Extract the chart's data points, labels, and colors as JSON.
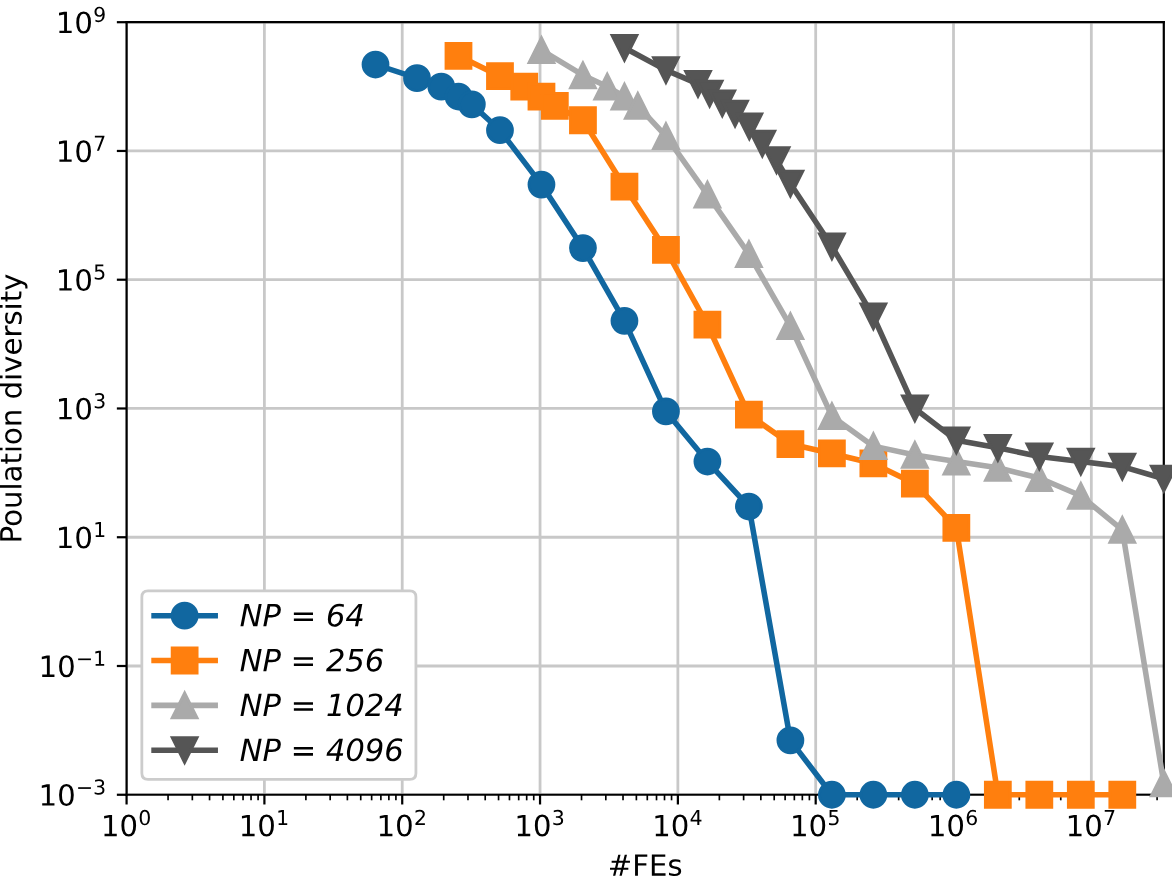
{
  "chart_data": {
    "type": "line",
    "xlabel": "#FEs",
    "ylabel": "Poulation diversity",
    "log": "xy",
    "grid": true,
    "legend": "bottom left",
    "xlim": [
      1,
      33554432
    ],
    "ylim": [
      0.001,
      1000000000
    ],
    "xticks": [
      {
        "value": 1,
        "label": "10$^{0}$"
      },
      {
        "value": 10,
        "label": "10$^{1}$"
      },
      {
        "value": 100,
        "label": "10$^{2}$"
      },
      {
        "value": 1000,
        "label": "10$^{3}$"
      },
      {
        "value": 10000,
        "label": "10$^{4}$"
      },
      {
        "value": 100000,
        "label": "10$^{5}$"
      },
      {
        "value": 1000000,
        "label": "10$^{6}$"
      },
      {
        "value": 10000000,
        "label": "10$^{7}$"
      }
    ],
    "yticks": [
      {
        "value": 0.001,
        "label": "10$^{−3}$"
      },
      {
        "value": 0.1,
        "label": "10$^{−1}$"
      },
      {
        "value": 10,
        "label": "10$^{1}$"
      },
      {
        "value": 1000,
        "label": "10$^{3}$"
      },
      {
        "value": 100000,
        "label": "10$^{5}$"
      },
      {
        "value": 10000000,
        "label": "10$^{7}$"
      },
      {
        "value": 1000000000,
        "label": "10$^{9}$"
      }
    ],
    "series": [
      {
        "name": "NP = 64",
        "color": "#1167a0",
        "marker": "circle",
        "x": [
          64,
          128,
          192,
          256,
          320,
          512,
          1024,
          2048,
          4096,
          8192,
          16384,
          32768,
          65536,
          131072,
          262144,
          524288,
          1048576
        ],
        "values": [
          220000000,
          135000000,
          100000000,
          70000000,
          53000000,
          21000000,
          3000000,
          310000,
          23000,
          900,
          150,
          30,
          0.007,
          0.001,
          0.001,
          0.001,
          0.001
        ]
      },
      {
        "name": "NP = 256",
        "color": "#ff7f0e",
        "marker": "square",
        "x": [
          256,
          512,
          768,
          1024,
          1280,
          2048,
          4096,
          8192,
          16384,
          32768,
          65536,
          131072,
          262144,
          524288,
          1048576,
          2097152,
          4194304,
          8388608,
          16777216
        ],
        "values": [
          300000000,
          145000000,
          100000000,
          70000000,
          50000000,
          30000000,
          2800000,
          290000,
          20000,
          800,
          280,
          200,
          140,
          68,
          14,
          0.001,
          0.001,
          0.001,
          0.001
        ]
      },
      {
        "name": "NP = 1024",
        "color": "#aaaaaa",
        "marker": "triangle",
        "x": [
          1024,
          2048,
          3072,
          4096,
          5120,
          8192,
          16384,
          32768,
          65536,
          131072,
          262144,
          524288,
          1048576,
          2097152,
          4194304,
          8388608,
          16777216,
          33554432
        ],
        "values": [
          370000000,
          150000000,
          100000000,
          70000000,
          50000000,
          17000000,
          2100000,
          250000,
          19000,
          760,
          260,
          190,
          150,
          120,
          83,
          44,
          13,
          0.0015
        ]
      },
      {
        "name": "NP = 4096",
        "color": "#555555",
        "marker": "triangle_down",
        "x": [
          4096,
          8192,
          14000,
          17000,
          21000,
          26000,
          33000,
          41000,
          52000,
          65536,
          131072,
          262144,
          524288,
          1048576,
          2097152,
          4194304,
          8388608,
          16777216,
          33554432
        ],
        "values": [
          400000000,
          180000000,
          110000000,
          78000000,
          55000000,
          38000000,
          24000000,
          13000000,
          7200000,
          3100000,
          330000,
          27000,
          1000,
          320,
          245,
          180,
          150,
          125,
          81
        ]
      }
    ]
  }
}
